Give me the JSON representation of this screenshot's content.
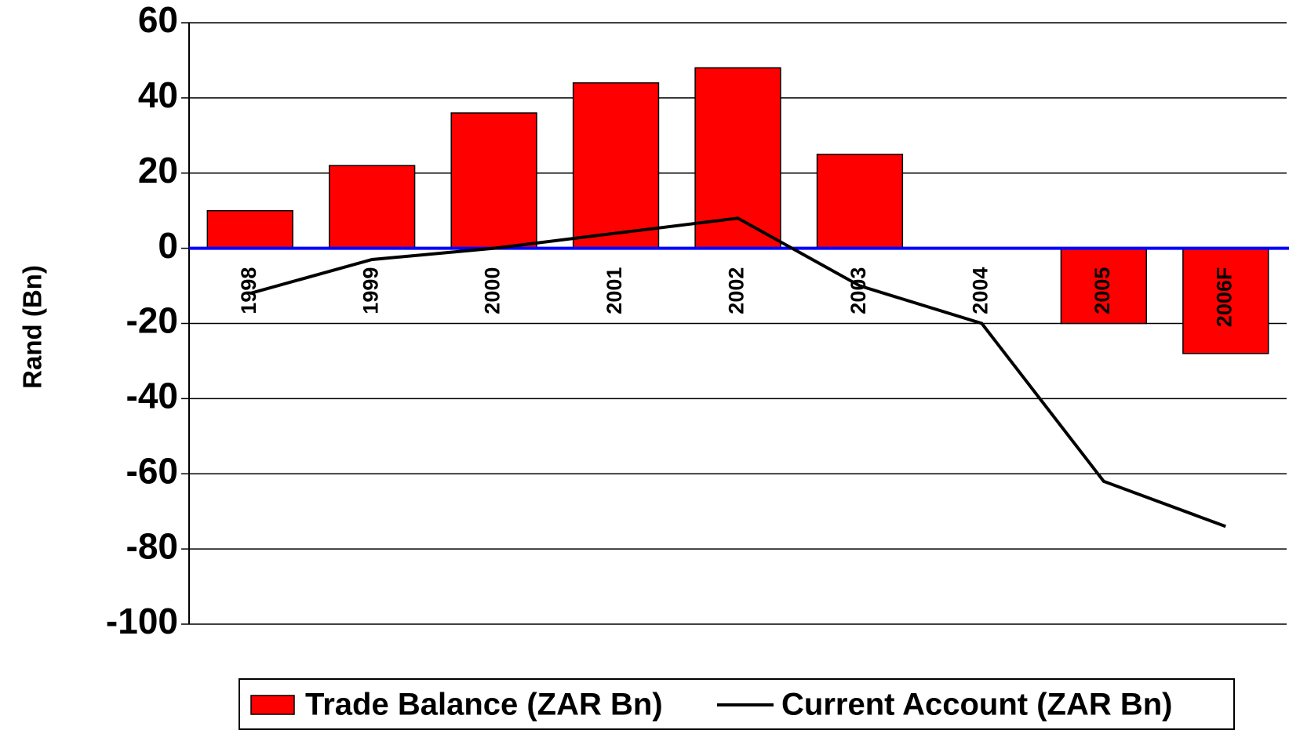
{
  "chart_data": {
    "type": "bar_line",
    "y_label": "Rand (Bn)",
    "categories": [
      "1998",
      "1999",
      "2000",
      "2001",
      "2002",
      "2003",
      "2004",
      "2005",
      "2006F"
    ],
    "series": [
      {
        "name": "Trade Balance (ZAR Bn)",
        "type": "bar",
        "color": "#ff0000",
        "values": [
          10,
          22,
          36,
          44,
          48,
          25,
          null,
          -20,
          -28
        ]
      },
      {
        "name": "Current Account (ZAR Bn)",
        "type": "line",
        "color": "#000000",
        "values": [
          -12,
          -3,
          0,
          4,
          8,
          -10,
          -20,
          -62,
          -74
        ]
      }
    ],
    "ylim": [
      -100,
      60
    ],
    "yticks": [
      -100,
      -80,
      -60,
      -40,
      -20,
      0,
      20,
      40,
      60
    ],
    "grid": true,
    "zero_line_color": "#0000ff",
    "legend": "bottom"
  }
}
